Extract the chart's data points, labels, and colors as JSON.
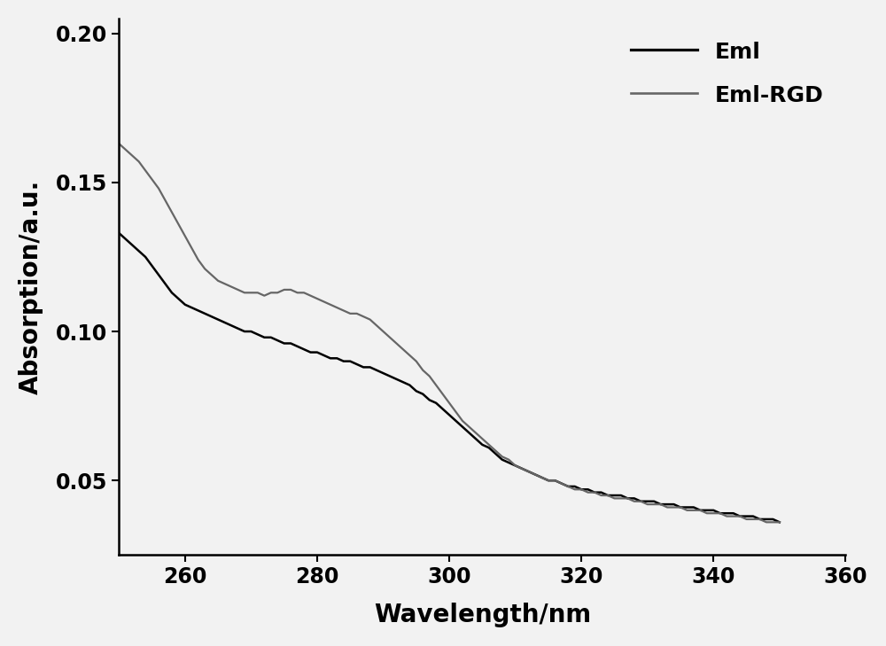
{
  "title": "",
  "xlabel": "Wavelength/nm",
  "ylabel": "Absorption/a.u.",
  "xlim": [
    250,
    355
  ],
  "ylim": [
    0.025,
    0.205
  ],
  "xticks": [
    260,
    280,
    300,
    320,
    340,
    360
  ],
  "yticks": [
    0.05,
    0.1,
    0.15,
    0.2
  ],
  "eml_color": "#000000",
  "eml_rgd_color": "#666666",
  "eml_linewidth": 1.8,
  "eml_rgd_linewidth": 1.6,
  "legend_labels": [
    "Eml",
    "Eml-RGD"
  ],
  "legend_fontsize": 18,
  "axis_label_fontsize": 20,
  "tick_fontsize": 17,
  "background_color": "#f2f2f2",
  "eml_x": [
    250,
    251,
    252,
    253,
    254,
    255,
    256,
    257,
    258,
    259,
    260,
    261,
    262,
    263,
    264,
    265,
    266,
    267,
    268,
    269,
    270,
    271,
    272,
    273,
    274,
    275,
    276,
    277,
    278,
    279,
    280,
    281,
    282,
    283,
    284,
    285,
    286,
    287,
    288,
    289,
    290,
    291,
    292,
    293,
    294,
    295,
    296,
    297,
    298,
    299,
    300,
    301,
    302,
    303,
    304,
    305,
    306,
    307,
    308,
    309,
    310,
    311,
    312,
    313,
    314,
    315,
    316,
    317,
    318,
    319,
    320,
    321,
    322,
    323,
    324,
    325,
    326,
    327,
    328,
    329,
    330,
    331,
    332,
    333,
    334,
    335,
    336,
    337,
    338,
    339,
    340,
    341,
    342,
    343,
    344,
    345,
    346,
    347,
    348,
    349,
    350
  ],
  "eml_y": [
    0.133,
    0.131,
    0.129,
    0.127,
    0.125,
    0.122,
    0.119,
    0.116,
    0.113,
    0.111,
    0.109,
    0.108,
    0.107,
    0.106,
    0.105,
    0.104,
    0.103,
    0.102,
    0.101,
    0.1,
    0.1,
    0.099,
    0.098,
    0.098,
    0.097,
    0.096,
    0.096,
    0.095,
    0.094,
    0.093,
    0.093,
    0.092,
    0.091,
    0.091,
    0.09,
    0.09,
    0.089,
    0.088,
    0.088,
    0.087,
    0.086,
    0.085,
    0.084,
    0.083,
    0.082,
    0.08,
    0.079,
    0.077,
    0.076,
    0.074,
    0.072,
    0.07,
    0.068,
    0.066,
    0.064,
    0.062,
    0.061,
    0.059,
    0.057,
    0.056,
    0.055,
    0.054,
    0.053,
    0.052,
    0.051,
    0.05,
    0.05,
    0.049,
    0.048,
    0.048,
    0.047,
    0.047,
    0.046,
    0.046,
    0.045,
    0.045,
    0.045,
    0.044,
    0.044,
    0.043,
    0.043,
    0.043,
    0.042,
    0.042,
    0.042,
    0.041,
    0.041,
    0.041,
    0.04,
    0.04,
    0.04,
    0.039,
    0.039,
    0.039,
    0.038,
    0.038,
    0.038,
    0.037,
    0.037,
    0.037,
    0.036
  ],
  "rgd_x": [
    250,
    251,
    252,
    253,
    254,
    255,
    256,
    257,
    258,
    259,
    260,
    261,
    262,
    263,
    264,
    265,
    266,
    267,
    268,
    269,
    270,
    271,
    272,
    273,
    274,
    275,
    276,
    277,
    278,
    279,
    280,
    281,
    282,
    283,
    284,
    285,
    286,
    287,
    288,
    289,
    290,
    291,
    292,
    293,
    294,
    295,
    296,
    297,
    298,
    299,
    300,
    301,
    302,
    303,
    304,
    305,
    306,
    307,
    308,
    309,
    310,
    311,
    312,
    313,
    314,
    315,
    316,
    317,
    318,
    319,
    320,
    321,
    322,
    323,
    324,
    325,
    326,
    327,
    328,
    329,
    330,
    331,
    332,
    333,
    334,
    335,
    336,
    337,
    338,
    339,
    340,
    341,
    342,
    343,
    344,
    345,
    346,
    347,
    348,
    349,
    350
  ],
  "rgd_y": [
    0.163,
    0.161,
    0.159,
    0.157,
    0.154,
    0.151,
    0.148,
    0.144,
    0.14,
    0.136,
    0.132,
    0.128,
    0.124,
    0.121,
    0.119,
    0.117,
    0.116,
    0.115,
    0.114,
    0.113,
    0.113,
    0.113,
    0.112,
    0.113,
    0.113,
    0.114,
    0.114,
    0.113,
    0.113,
    0.112,
    0.111,
    0.11,
    0.109,
    0.108,
    0.107,
    0.106,
    0.106,
    0.105,
    0.104,
    0.102,
    0.1,
    0.098,
    0.096,
    0.094,
    0.092,
    0.09,
    0.087,
    0.085,
    0.082,
    0.079,
    0.076,
    0.073,
    0.07,
    0.068,
    0.066,
    0.064,
    0.062,
    0.06,
    0.058,
    0.057,
    0.055,
    0.054,
    0.053,
    0.052,
    0.051,
    0.05,
    0.05,
    0.049,
    0.048,
    0.047,
    0.047,
    0.046,
    0.046,
    0.045,
    0.045,
    0.044,
    0.044,
    0.044,
    0.043,
    0.043,
    0.042,
    0.042,
    0.042,
    0.041,
    0.041,
    0.041,
    0.04,
    0.04,
    0.04,
    0.039,
    0.039,
    0.039,
    0.038,
    0.038,
    0.038,
    0.037,
    0.037,
    0.037,
    0.036,
    0.036,
    0.036
  ]
}
